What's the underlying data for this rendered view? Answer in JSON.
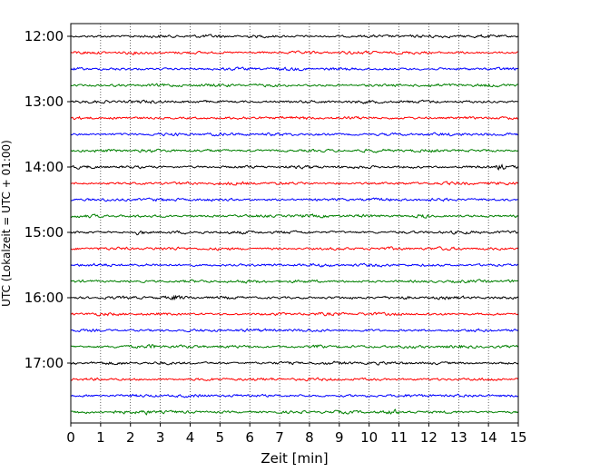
{
  "chart_data": {
    "type": "line",
    "title": "",
    "xlabel": "Zeit  [min]",
    "ylabel": "UTC (Lokalzeit = UTC + 01:00)",
    "xlim": [
      0,
      15
    ],
    "x_ticks": [
      "0",
      "1",
      "2",
      "3",
      "4",
      "5",
      "6",
      "7",
      "8",
      "9",
      "10",
      "11",
      "12",
      "13",
      "14",
      "15"
    ],
    "y_ticks": [
      "12:00",
      "13:00",
      "14:00",
      "15:00",
      "16:00",
      "17:00"
    ],
    "grid": "vertical dotted",
    "trace_colors": [
      "#000000",
      "#ff0000",
      "#0000ff",
      "#008000"
    ],
    "traces": [
      {
        "start": "12:00",
        "color": "#000000"
      },
      {
        "start": "12:15",
        "color": "#ff0000"
      },
      {
        "start": "12:30",
        "color": "#0000ff"
      },
      {
        "start": "12:45",
        "color": "#008000"
      },
      {
        "start": "13:00",
        "color": "#000000"
      },
      {
        "start": "13:15",
        "color": "#ff0000"
      },
      {
        "start": "13:30",
        "color": "#0000ff"
      },
      {
        "start": "13:45",
        "color": "#008000"
      },
      {
        "start": "14:00",
        "color": "#000000"
      },
      {
        "start": "14:15",
        "color": "#ff0000"
      },
      {
        "start": "14:30",
        "color": "#0000ff"
      },
      {
        "start": "14:45",
        "color": "#008000"
      },
      {
        "start": "15:00",
        "color": "#000000"
      },
      {
        "start": "15:15",
        "color": "#ff0000"
      },
      {
        "start": "15:30",
        "color": "#0000ff"
      },
      {
        "start": "15:45",
        "color": "#008000"
      },
      {
        "start": "16:00",
        "color": "#000000"
      },
      {
        "start": "16:15",
        "color": "#ff0000"
      },
      {
        "start": "16:30",
        "color": "#0000ff"
      },
      {
        "start": "16:45",
        "color": "#008000"
      },
      {
        "start": "17:00",
        "color": "#000000"
      },
      {
        "start": "17:15",
        "color": "#ff0000"
      },
      {
        "start": "17:30",
        "color": "#0000ff"
      },
      {
        "start": "17:45",
        "color": "#008000"
      }
    ],
    "bursts": [
      {
        "trace": 8,
        "x": 14.4,
        "amp": 2.2
      },
      {
        "trace": 12,
        "x": 2.3,
        "amp": 1.6
      },
      {
        "trace": 19,
        "x": 2.7,
        "amp": 1.5
      },
      {
        "trace": 19,
        "x": 8.3,
        "amp": 1.4
      },
      {
        "trace": 23,
        "x": 2.5,
        "amp": 1.8
      },
      {
        "trace": 23,
        "x": 10.8,
        "amp": 1.4
      },
      {
        "trace": 11,
        "x": 11.8,
        "amp": 1.3
      },
      {
        "trace": 16,
        "x": 3.5,
        "amp": 1.4
      }
    ]
  }
}
